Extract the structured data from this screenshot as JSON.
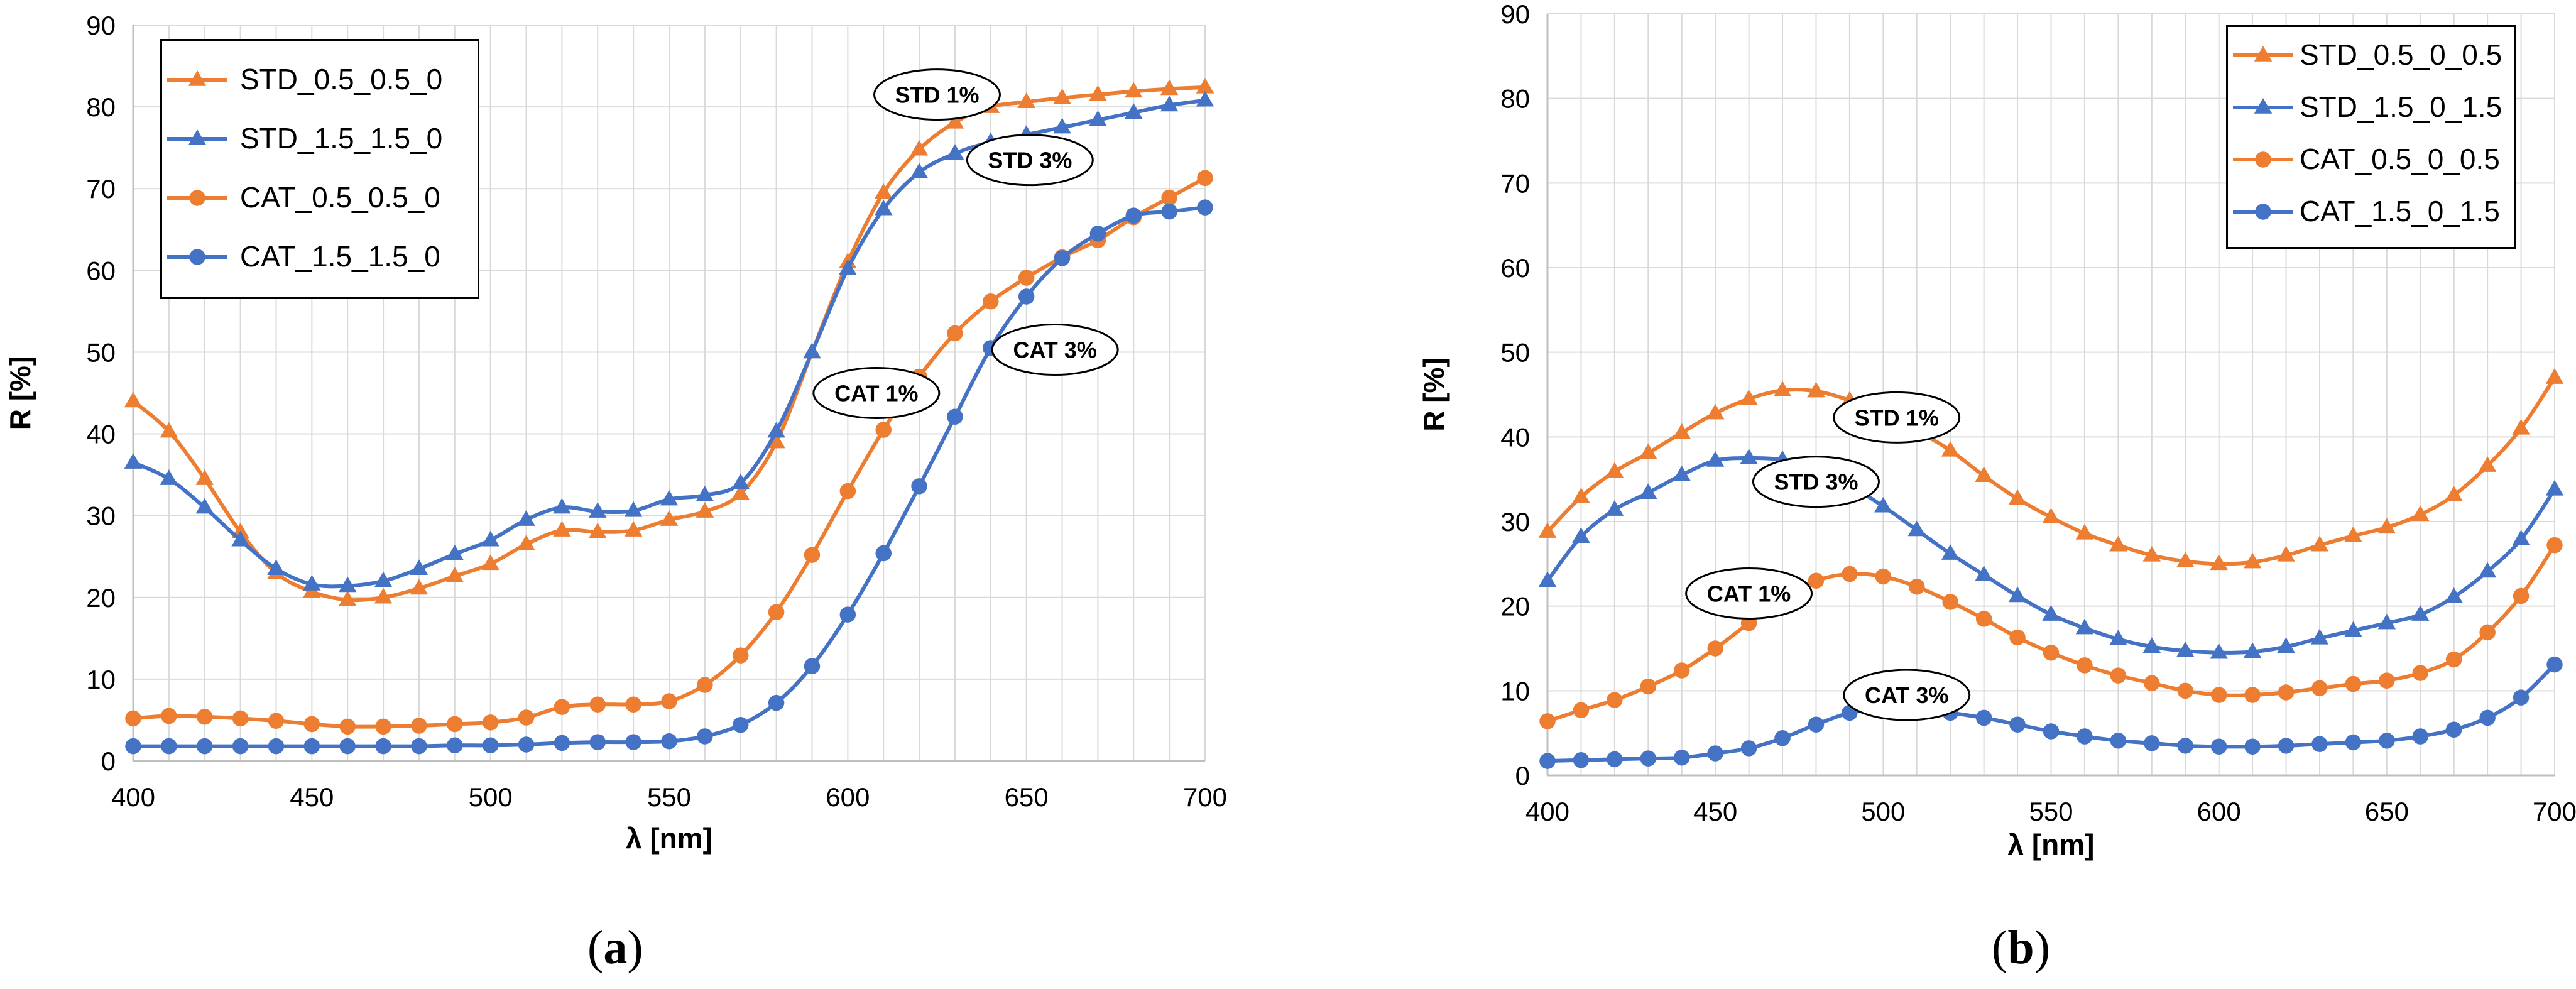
{
  "colors": {
    "orange": "#ED7D31",
    "blue": "#4472C4",
    "grid": "#D9D9D9",
    "axis": "#BFBFBF"
  },
  "chart_data": [
    {
      "type": "line",
      "caption_label": "a",
      "xlabel": "λ [nm]",
      "ylabel": "R [%]",
      "xlim": [
        400,
        700
      ],
      "ylim": [
        0,
        90
      ],
      "xticks": [
        400,
        450,
        500,
        550,
        600,
        650,
        700
      ],
      "yticks": [
        0,
        10,
        20,
        30,
        40,
        50,
        60,
        70,
        80,
        90
      ],
      "grid": true,
      "legend_position": "top-left",
      "x": [
        400,
        410,
        420,
        430,
        440,
        450,
        460,
        470,
        480,
        490,
        500,
        510,
        520,
        530,
        540,
        550,
        560,
        570,
        580,
        590,
        600,
        610,
        620,
        630,
        640,
        650,
        660,
        670,
        680,
        690,
        700
      ],
      "series": [
        {
          "name": "STD_0.5_0.5_0",
          "color": "orange",
          "marker": "triangle",
          "values": [
            44,
            40.3,
            34.5,
            28,
            23,
            20.7,
            19.7,
            20,
            21.1,
            22.6,
            24.1,
            26.5,
            28.2,
            28,
            28.2,
            29.5,
            30.5,
            32.7,
            39,
            50,
            61,
            69.5,
            74.8,
            78.1,
            80,
            80.6,
            81.1,
            81.5,
            81.9,
            82.2,
            82.4
          ]
        },
        {
          "name": "STD_1.5_1.5_0",
          "color": "blue",
          "marker": "triangle",
          "values": [
            36.5,
            34.5,
            31,
            27,
            23.5,
            21.6,
            21.4,
            22,
            23.5,
            25.3,
            27,
            29.5,
            31,
            30.5,
            30.6,
            32,
            32.5,
            34,
            40.3,
            50,
            60.2,
            67.5,
            72,
            74.3,
            75.7,
            76.6,
            77.5,
            78.4,
            79.3,
            80.2,
            80.8
          ]
        },
        {
          "name": "CAT_0.5_0.5_0",
          "color": "orange",
          "marker": "circle",
          "values": [
            5.2,
            5.5,
            5.4,
            5.2,
            4.9,
            4.5,
            4.2,
            4.2,
            4.3,
            4.5,
            4.7,
            5.3,
            6.6,
            6.9,
            6.9,
            7.3,
            9.3,
            12.9,
            18.2,
            25.2,
            33,
            40.5,
            47,
            52.3,
            56.2,
            59.1,
            61.6,
            63.7,
            66.5,
            68.9,
            71.3
          ]
        },
        {
          "name": "CAT_1.5_1.5_0",
          "color": "blue",
          "marker": "circle",
          "values": [
            1.8,
            1.8,
            1.8,
            1.8,
            1.8,
            1.8,
            1.8,
            1.8,
            1.8,
            1.9,
            1.9,
            2,
            2.2,
            2.3,
            2.3,
            2.4,
            3,
            4.4,
            7.1,
            11.6,
            17.9,
            25.4,
            33.6,
            42.1,
            50.5,
            56.8,
            61.5,
            64.5,
            66.7,
            67.2,
            67.7
          ]
        }
      ],
      "annotations": [
        {
          "text": "STD 1%",
          "x": 625,
          "y": 81.5
        },
        {
          "text": "STD 3%",
          "x": 651,
          "y": 73.5
        },
        {
          "text": "CAT 1%",
          "x": 608,
          "y": 45
        },
        {
          "text": "CAT 3%",
          "x": 658,
          "y": 50.3
        }
      ]
    },
    {
      "type": "line",
      "caption_label": "b",
      "xlabel": "λ [nm]",
      "ylabel": "R [%]",
      "xlim": [
        400,
        700
      ],
      "ylim": [
        0,
        90
      ],
      "xticks": [
        400,
        450,
        500,
        550,
        600,
        650,
        700
      ],
      "yticks": [
        0,
        10,
        20,
        30,
        40,
        50,
        60,
        70,
        80,
        90
      ],
      "grid": true,
      "legend_position": "top-right",
      "x": [
        400,
        410,
        420,
        430,
        440,
        450,
        460,
        470,
        480,
        490,
        500,
        510,
        520,
        530,
        540,
        550,
        560,
        570,
        580,
        590,
        600,
        610,
        620,
        630,
        640,
        650,
        660,
        670,
        680,
        690,
        700
      ],
      "series": [
        {
          "name": "STD_0.5_0_0.5",
          "color": "orange",
          "marker": "triangle",
          "values": [
            28.8,
            32.9,
            35.9,
            38.1,
            40.5,
            42.8,
            44.5,
            45.5,
            45.4,
            44.3,
            42.5,
            40.7,
            38.4,
            35.4,
            32.7,
            30.5,
            28.6,
            27.2,
            26,
            25.3,
            25,
            25.2,
            26,
            27.2,
            28.3,
            29.3,
            30.8,
            33.1,
            36.6,
            41,
            47
          ]
        },
        {
          "name": "STD_1.5_0_1.5",
          "color": "blue",
          "marker": "triangle",
          "values": [
            23,
            28.2,
            31.4,
            33.4,
            35.5,
            37.2,
            37.5,
            37.3,
            36.3,
            34.3,
            31.8,
            29,
            26.2,
            23.7,
            21.2,
            19,
            17.4,
            16.1,
            15.2,
            14.7,
            14.5,
            14.6,
            15.2,
            16.2,
            17.1,
            18,
            19,
            21.1,
            24.1,
            27.9,
            33.8
          ]
        },
        {
          "name": "CAT_0.5_0_0.5",
          "color": "orange",
          "marker": "circle",
          "values": [
            6.4,
            7.7,
            8.9,
            10.5,
            12.4,
            15,
            18,
            21,
            23,
            23.8,
            23.5,
            22.3,
            20.5,
            18.5,
            16.3,
            14.5,
            13,
            11.8,
            10.9,
            10,
            9.5,
            9.5,
            9.8,
            10.3,
            10.8,
            11.2,
            12.1,
            13.7,
            16.9,
            21.2,
            27.2
          ]
        },
        {
          "name": "CAT_1.5_0_1.5",
          "color": "blue",
          "marker": "circle",
          "values": [
            1.7,
            1.8,
            1.9,
            2,
            2.1,
            2.6,
            3.2,
            4.4,
            6,
            7.4,
            8,
            7.9,
            7.4,
            6.8,
            6,
            5.2,
            4.6,
            4.1,
            3.8,
            3.5,
            3.4,
            3.4,
            3.5,
            3.7,
            3.9,
            4.1,
            4.6,
            5.4,
            6.8,
            9.2,
            13.1
          ]
        }
      ],
      "annotations": [
        {
          "text": "STD 1%",
          "x": 504,
          "y": 42.3
        },
        {
          "text": "STD 3%",
          "x": 480,
          "y": 34.7
        },
        {
          "text": "CAT 1%",
          "x": 460,
          "y": 21.5
        },
        {
          "text": "CAT 3%",
          "x": 507,
          "y": 9.5
        }
      ]
    }
  ]
}
